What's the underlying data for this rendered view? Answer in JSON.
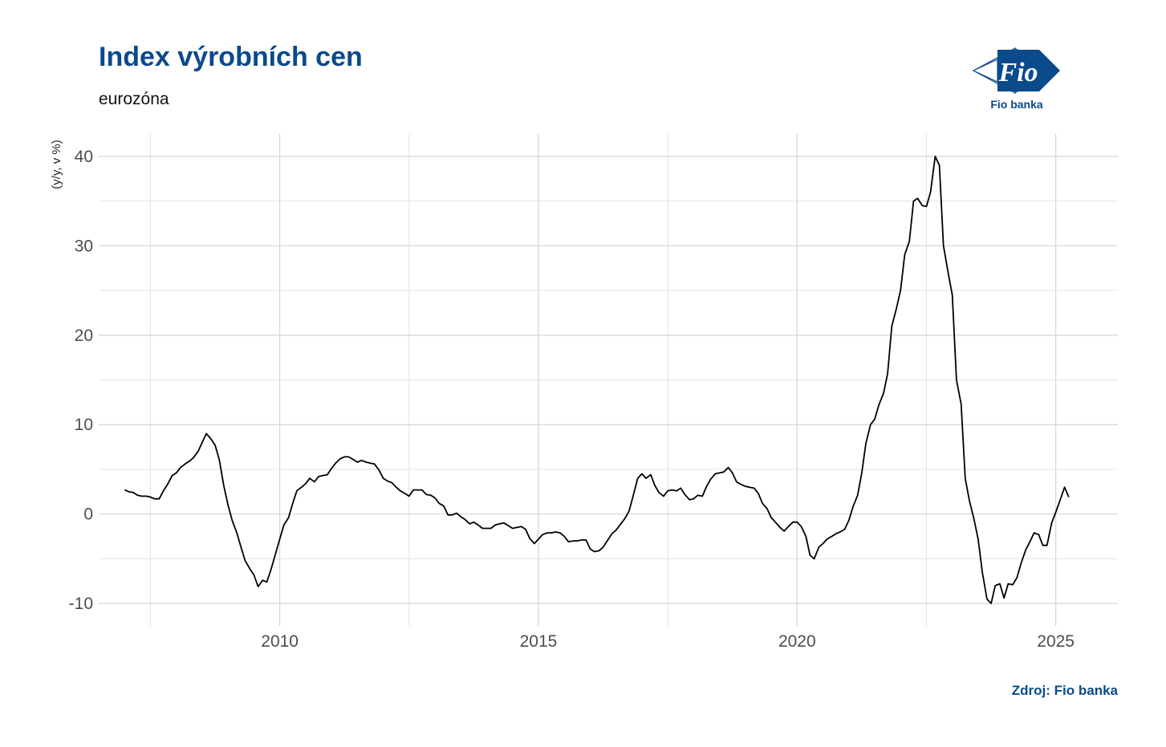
{
  "header": {
    "title": "Index výrobních cen",
    "subtitle": "eurozóna"
  },
  "logo": {
    "text": "Fio",
    "caption": "Fio banka"
  },
  "footer": {
    "source": "Zdroj: Fio banka"
  },
  "colors": {
    "brand": "#0b4a8b",
    "line": "#000000",
    "grid": "#d9d9d9",
    "tick_text": "#4d4d4d"
  },
  "chart_data": {
    "type": "line",
    "title": "Index výrobních cen",
    "subtitle": "eurozóna",
    "xlabel": "",
    "ylabel": "(y/y, v %)",
    "xlim": [
      2006.5,
      2026.2
    ],
    "ylim": [
      -12.5,
      42.5
    ],
    "x_ticks": [
      2010,
      2015,
      2020,
      2025
    ],
    "x_tick_labels": [
      "2010",
      "2015",
      "2020",
      "2025"
    ],
    "y_ticks": [
      -10,
      0,
      10,
      20,
      30,
      40
    ],
    "y_tick_labels": [
      "-10",
      "0",
      "10",
      "20",
      "30",
      "40"
    ],
    "grid": true,
    "legend": "none",
    "series": [
      {
        "color": "#000000",
        "x": [
          2007.0,
          2007.08,
          2007.17,
          2007.25,
          2007.33,
          2007.42,
          2007.5,
          2007.58,
          2007.67,
          2007.75,
          2007.83,
          2007.92,
          2008.0,
          2008.08,
          2008.17,
          2008.25,
          2008.33,
          2008.42,
          2008.5,
          2008.58,
          2008.67,
          2008.75,
          2008.83,
          2008.92,
          2009.0,
          2009.08,
          2009.17,
          2009.25,
          2009.33,
          2009.42,
          2009.5,
          2009.58,
          2009.67,
          2009.75,
          2009.83,
          2009.92,
          2010.0,
          2010.08,
          2010.17,
          2010.25,
          2010.33,
          2010.42,
          2010.5,
          2010.58,
          2010.67,
          2010.75,
          2010.83,
          2010.92,
          2011.0,
          2011.08,
          2011.17,
          2011.25,
          2011.33,
          2011.42,
          2011.5,
          2011.58,
          2011.67,
          2011.75,
          2011.83,
          2011.92,
          2012.0,
          2012.08,
          2012.17,
          2012.25,
          2012.33,
          2012.42,
          2012.5,
          2012.58,
          2012.67,
          2012.75,
          2012.83,
          2012.92,
          2013.0,
          2013.08,
          2013.17,
          2013.25,
          2013.33,
          2013.42,
          2013.5,
          2013.58,
          2013.67,
          2013.75,
          2013.83,
          2013.92,
          2014.0,
          2014.08,
          2014.17,
          2014.25,
          2014.33,
          2014.42,
          2014.5,
          2014.58,
          2014.67,
          2014.75,
          2014.83,
          2014.92,
          2015.0,
          2015.08,
          2015.17,
          2015.25,
          2015.33,
          2015.42,
          2015.5,
          2015.58,
          2015.67,
          2015.75,
          2015.83,
          2015.92,
          2016.0,
          2016.08,
          2016.17,
          2016.25,
          2016.33,
          2016.42,
          2016.5,
          2016.58,
          2016.67,
          2016.75,
          2016.83,
          2016.92,
          2017.0,
          2017.08,
          2017.17,
          2017.25,
          2017.33,
          2017.42,
          2017.5,
          2017.58,
          2017.67,
          2017.75,
          2017.83,
          2017.92,
          2018.0,
          2018.08,
          2018.17,
          2018.25,
          2018.33,
          2018.42,
          2018.5,
          2018.58,
          2018.67,
          2018.75,
          2018.83,
          2018.92,
          2019.0,
          2019.08,
          2019.17,
          2019.25,
          2019.33,
          2019.42,
          2019.5,
          2019.58,
          2019.67,
          2019.75,
          2019.83,
          2019.92,
          2020.0,
          2020.08,
          2020.17,
          2020.25,
          2020.33,
          2020.42,
          2020.5,
          2020.58,
          2020.67,
          2020.75,
          2020.83,
          2020.92,
          2021.0,
          2021.08,
          2021.17,
          2021.25,
          2021.33,
          2021.42,
          2021.5,
          2021.58,
          2021.67,
          2021.75,
          2021.83,
          2021.92,
          2022.0,
          2022.08,
          2022.17,
          2022.25,
          2022.33,
          2022.42,
          2022.5,
          2022.58,
          2022.67,
          2022.75,
          2022.83,
          2022.92,
          2023.0,
          2023.08,
          2023.17,
          2023.25,
          2023.33,
          2023.42,
          2023.5,
          2023.58,
          2023.67,
          2023.75,
          2023.83,
          2023.92,
          2024.0,
          2024.08,
          2024.17,
          2024.25,
          2024.33,
          2024.42,
          2024.5,
          2024.58,
          2024.67,
          2024.75,
          2024.83,
          2024.92,
          2025.0,
          2025.08,
          2025.17,
          2025.25
        ],
        "y": [
          2.7,
          2.5,
          2.4,
          2.1,
          2.0,
          2.0,
          1.9,
          1.7,
          1.7,
          2.6,
          3.3,
          4.3,
          4.6,
          5.2,
          5.6,
          5.9,
          6.3,
          7.0,
          8.0,
          9.0,
          8.4,
          7.7,
          6.1,
          3.1,
          1.0,
          -0.7,
          -2.1,
          -3.7,
          -5.2,
          -6.1,
          -6.8,
          -8.1,
          -7.4,
          -7.6,
          -6.2,
          -4.4,
          -2.8,
          -1.2,
          -0.4,
          1.2,
          2.6,
          3.0,
          3.4,
          4.0,
          3.6,
          4.2,
          4.3,
          4.4,
          5.1,
          5.7,
          6.2,
          6.4,
          6.4,
          6.1,
          5.8,
          6.0,
          5.8,
          5.7,
          5.6,
          4.9,
          4.0,
          3.7,
          3.5,
          3.0,
          2.6,
          2.3,
          2.0,
          2.7,
          2.7,
          2.7,
          2.2,
          2.1,
          1.8,
          1.2,
          0.9,
          -0.1,
          -0.1,
          0.1,
          -0.3,
          -0.6,
          -1.1,
          -0.9,
          -1.2,
          -1.6,
          -1.6,
          -1.6,
          -1.2,
          -1.1,
          -1.0,
          -1.3,
          -1.6,
          -1.5,
          -1.4,
          -1.7,
          -2.7,
          -3.3,
          -2.8,
          -2.3,
          -2.1,
          -2.1,
          -2.0,
          -2.1,
          -2.5,
          -3.1,
          -3.0,
          -3.0,
          -2.9,
          -2.9,
          -3.9,
          -4.2,
          -4.1,
          -3.7,
          -3.0,
          -2.2,
          -1.8,
          -1.2,
          -0.5,
          0.3,
          2.0,
          4.0,
          4.5,
          4.0,
          4.4,
          3.2,
          2.4,
          2.0,
          2.6,
          2.7,
          2.6,
          2.9,
          2.2,
          1.6,
          1.7,
          2.1,
          2.0,
          3.1,
          3.9,
          4.5,
          4.6,
          4.7,
          5.2,
          4.6,
          3.6,
          3.3,
          3.1,
          3.0,
          2.9,
          2.3,
          1.2,
          0.6,
          -0.4,
          -0.9,
          -1.5,
          -1.9,
          -1.4,
          -0.9,
          -0.9,
          -1.4,
          -2.5,
          -4.6,
          -5.0,
          -3.7,
          -3.3,
          -2.8,
          -2.5,
          -2.2,
          -2.0,
          -1.7,
          -0.7,
          0.8,
          2.1,
          4.6,
          7.9,
          10.0,
          10.6,
          12.2,
          13.5,
          15.7,
          21.0,
          23.0,
          25.0,
          29.0,
          30.5,
          35.0,
          35.3,
          34.5,
          34.4,
          36.0,
          40.0,
          39.0,
          30.0,
          27.0,
          24.5,
          15.0,
          12.3,
          4.0,
          1.5,
          -0.6,
          -2.8,
          -6.5,
          -9.5,
          -10.0,
          -8.0,
          -7.8,
          -9.4,
          -7.8,
          -7.9,
          -7.1,
          -5.5,
          -4.0,
          -3.1,
          -2.1,
          -2.3,
          -3.5,
          -3.5,
          -1.0,
          0.2,
          1.5,
          3.0,
          1.9
        ]
      }
    ]
  }
}
